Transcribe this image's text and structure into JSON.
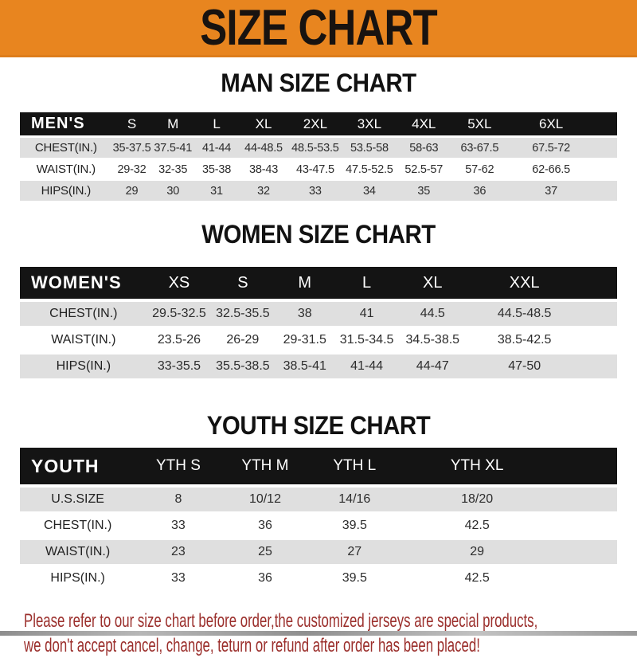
{
  "banner": {
    "title": "SIZE CHART",
    "bg_color": "#E8851F",
    "title_color": "#181310"
  },
  "sections": [
    {
      "heading": "MAN SIZE CHART",
      "corner_label": "MEN'S",
      "columns": [
        "S",
        "M",
        "L",
        "XL",
        "2XL",
        "3XL",
        "4XL",
        "5XL",
        "6XL"
      ],
      "rows": [
        {
          "label": "CHEST(IN.)",
          "values": [
            "35-37.5",
            "37.5-41",
            "41-44",
            "44-48.5",
            "48.5-53.5",
            "53.5-58",
            "58-63",
            "63-67.5",
            "67.5-72"
          ]
        },
        {
          "label": "WAIST(IN.)",
          "values": [
            "29-32",
            "32-35",
            "35-38",
            "38-43",
            "43-47.5",
            "47.5-52.5",
            "52.5-57",
            "57-62",
            "62-66.5"
          ]
        },
        {
          "label": "HIPS(IN.)",
          "values": [
            "29",
            "30",
            "31",
            "32",
            "33",
            "34",
            "35",
            "36",
            "37"
          ]
        }
      ]
    },
    {
      "heading": "WOMEN SIZE CHART",
      "corner_label": "WOMEN'S",
      "columns": [
        "XS",
        "S",
        "M",
        "L",
        "XL",
        "XXL"
      ],
      "rows": [
        {
          "label": "CHEST(IN.)",
          "values": [
            "29.5-32.5",
            "32.5-35.5",
            "38",
            "41",
            "44.5",
            "44.5-48.5"
          ]
        },
        {
          "label": "WAIST(IN.)",
          "values": [
            "23.5-26",
            "26-29",
            "29-31.5",
            "31.5-34.5",
            "34.5-38.5",
            "38.5-42.5"
          ]
        },
        {
          "label": "HIPS(IN.)",
          "values": [
            "33-35.5",
            "35.5-38.5",
            "38.5-41",
            "41-44",
            "44-47",
            "47-50"
          ]
        }
      ]
    },
    {
      "heading": "YOUTH SIZE CHART",
      "corner_label": "YOUTH",
      "columns": [
        "YTH S",
        "YTH M",
        "YTH L",
        "YTH XL"
      ],
      "rows": [
        {
          "label": "U.S.SIZE",
          "values": [
            "8",
            "10/12",
            "14/16",
            "18/20"
          ]
        },
        {
          "label": "CHEST(IN.)",
          "values": [
            "33",
            "36",
            "39.5",
            "42.5"
          ]
        },
        {
          "label": "WAIST(IN.)",
          "values": [
            "23",
            "25",
            "27",
            "29"
          ]
        },
        {
          "label": "HIPS(IN.)",
          "values": [
            "33",
            "36",
            "39.5",
            "42.5"
          ]
        }
      ]
    }
  ],
  "footer": {
    "lines": [
      "Please refer to our size chart before order,the customized jerseys are special products,",
      "we don't accept cancel, change, teturn or refund after order has been placed!"
    ],
    "text_color": "#9B2F2C"
  },
  "colors": {
    "header_bar": "#141414",
    "row_stripe": "#DFDFDF"
  }
}
